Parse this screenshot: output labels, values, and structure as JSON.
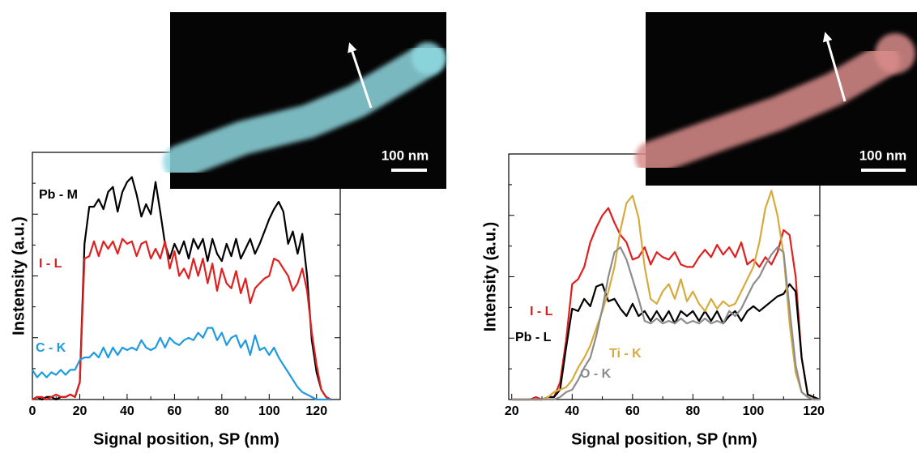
{
  "chart_data": [
    {
      "type": "line",
      "xlabel": "Signal position, SP (nm)",
      "ylabel": "Instensity (a.u.)",
      "scale_bar": "100 nm",
      "xlim": [
        0,
        130
      ],
      "ylim": [
        0,
        100
      ],
      "xticks": [
        0,
        20,
        40,
        60,
        80,
        100,
        120
      ],
      "x": [
        0,
        2,
        4,
        6,
        8,
        10,
        12,
        14,
        16,
        18,
        20,
        22,
        24,
        26,
        28,
        30,
        32,
        34,
        36,
        38,
        40,
        42,
        44,
        46,
        48,
        50,
        52,
        54,
        56,
        58,
        60,
        62,
        64,
        66,
        68,
        70,
        72,
        74,
        76,
        78,
        80,
        82,
        84,
        86,
        88,
        90,
        92,
        94,
        96,
        98,
        100,
        102,
        104,
        106,
        108,
        110,
        112,
        114,
        116,
        118,
        120,
        122,
        124,
        126
      ],
      "series": [
        {
          "name": "Pb - M",
          "color": "#000000",
          "values": [
            0,
            1,
            0,
            1,
            1,
            0,
            1,
            1,
            2,
            1,
            7,
            63,
            78,
            78,
            81,
            77,
            84,
            86,
            76,
            84,
            88,
            90,
            83,
            74,
            79,
            75,
            88,
            76,
            63,
            57,
            63,
            59,
            64,
            57,
            65,
            61,
            65,
            56,
            65,
            59,
            56,
            63,
            58,
            65,
            57,
            61,
            65,
            59,
            63,
            68,
            73,
            77,
            80,
            76,
            63,
            68,
            59,
            67,
            50,
            24,
            11,
            4,
            1,
            0
          ]
        },
        {
          "name": "I - L",
          "color": "#e0201e",
          "values": [
            0,
            1,
            1,
            0,
            1,
            2,
            1,
            1,
            2,
            1,
            7,
            57,
            58,
            64,
            58,
            64,
            61,
            64,
            59,
            65,
            63,
            64,
            58,
            63,
            64,
            57,
            61,
            57,
            64,
            53,
            60,
            50,
            53,
            49,
            57,
            50,
            57,
            47,
            55,
            44,
            53,
            47,
            45,
            52,
            43,
            49,
            39,
            45,
            47,
            49,
            50,
            57,
            56,
            53,
            50,
            44,
            47,
            53,
            44,
            27,
            14,
            4,
            1,
            0
          ]
        },
        {
          "name": "C - K",
          "color": "#1e9be0",
          "values": [
            12,
            9,
            11,
            9,
            11,
            10,
            12,
            10,
            12,
            12,
            16,
            17,
            17,
            19,
            17,
            21,
            17,
            21,
            18,
            21,
            20,
            21,
            20,
            24,
            21,
            20,
            21,
            25,
            21,
            25,
            23,
            22,
            24,
            25,
            24,
            27,
            25,
            29,
            29,
            24,
            27,
            22,
            25,
            26,
            21,
            24,
            18,
            26,
            20,
            21,
            18,
            21,
            17,
            14,
            11,
            8,
            5,
            3,
            2,
            1,
            0,
            0,
            0,
            0
          ]
        }
      ]
    },
    {
      "type": "line",
      "xlabel": "Signal position, SP (nm)",
      "ylabel": "Intensity (a.u.)",
      "scale_bar": "100 nm",
      "xlim": [
        19,
        122
      ],
      "ylim": [
        0,
        100
      ],
      "xticks": [
        20,
        40,
        60,
        80,
        100,
        120
      ],
      "x": [
        20,
        22,
        24,
        26,
        28,
        30,
        32,
        34,
        36,
        38,
        40,
        42,
        44,
        46,
        48,
        50,
        52,
        54,
        56,
        58,
        60,
        62,
        64,
        66,
        68,
        70,
        72,
        74,
        76,
        78,
        80,
        82,
        84,
        86,
        88,
        90,
        92,
        94,
        96,
        98,
        100,
        102,
        104,
        106,
        108,
        110,
        112,
        114,
        116,
        118,
        120,
        122
      ],
      "series": [
        {
          "name": "I - L",
          "color": "#e0201e",
          "values": [
            0,
            0,
            0,
            0,
            1,
            0,
            1,
            1,
            7,
            24,
            47,
            49,
            54,
            64,
            70,
            75,
            78,
            72,
            67,
            64,
            57,
            58,
            62,
            55,
            60,
            58,
            57,
            60,
            55,
            54,
            54,
            58,
            61,
            58,
            63,
            59,
            62,
            58,
            64,
            55,
            57,
            54,
            58,
            55,
            60,
            69,
            67,
            50,
            17,
            2,
            1,
            0
          ]
        },
        {
          "name": "Pb - L",
          "color": "#000000",
          "values": [
            0,
            0,
            0,
            0,
            0,
            0,
            1,
            1,
            4,
            21,
            37,
            36,
            41,
            38,
            46,
            47,
            40,
            41,
            37,
            34,
            39,
            34,
            36,
            32,
            36,
            32,
            36,
            31,
            36,
            34,
            36,
            32,
            36,
            32,
            36,
            31,
            34,
            36,
            32,
            36,
            38,
            36,
            38,
            40,
            42,
            43,
            47,
            44,
            17,
            2,
            1,
            0
          ]
        },
        {
          "name": "Ti - K",
          "color": "#d6ab3c",
          "values": [
            0,
            0,
            0,
            0,
            0,
            0,
            1,
            3,
            4,
            5,
            8,
            13,
            17,
            22,
            29,
            36,
            44,
            54,
            69,
            80,
            83,
            74,
            54,
            41,
            39,
            44,
            47,
            41,
            49,
            40,
            44,
            39,
            36,
            41,
            37,
            40,
            38,
            39,
            44,
            49,
            54,
            64,
            78,
            85,
            75,
            59,
            31,
            11,
            3,
            1,
            0,
            0
          ]
        },
        {
          "name": "O - K",
          "color": "#8c8c8c",
          "values": [
            0,
            0,
            0,
            0,
            0,
            0,
            0,
            0,
            1,
            3,
            4,
            8,
            13,
            17,
            26,
            37,
            50,
            60,
            62,
            57,
            49,
            41,
            32,
            31,
            33,
            31,
            32,
            31,
            33,
            31,
            32,
            31,
            33,
            31,
            32,
            31,
            36,
            34,
            37,
            42,
            47,
            50,
            55,
            59,
            62,
            60,
            37,
            14,
            3,
            1,
            0,
            0
          ]
        }
      ]
    }
  ]
}
